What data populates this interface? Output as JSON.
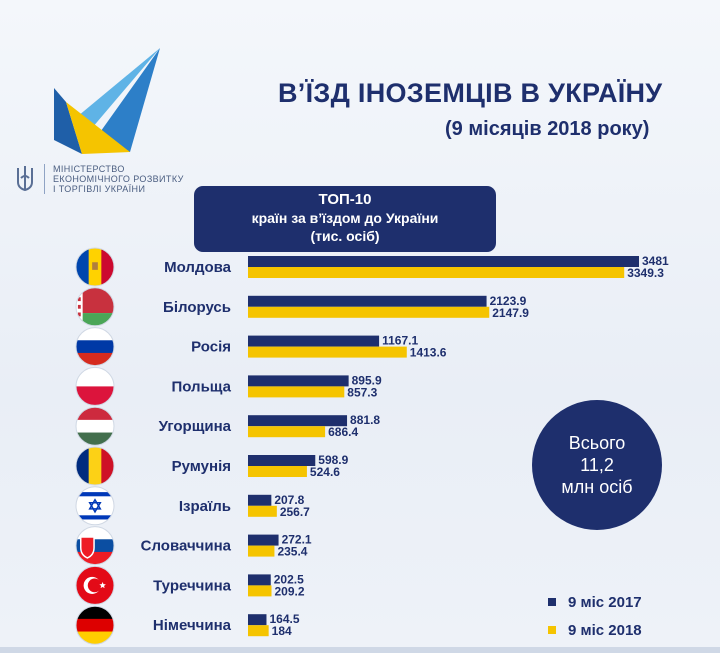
{
  "header": {
    "title": "В’ЇЗД ІНОЗЕМЦІВ В УКРАЇНУ",
    "subtitle": "(9 місяців 2018 року)",
    "ministry_lines": [
      "МІНІСТЕРСТВО",
      "ЕКОНОМІЧНОГО РОЗВИТКУ",
      "І ТОРГІВЛІ УКРАЇНИ"
    ]
  },
  "top_box": {
    "line1": "ТОП-10",
    "line2": "країн за в’їздом до України",
    "line3": "(тис. осіб)"
  },
  "total": {
    "line1": "Всього",
    "line2": "11,2",
    "line3": "млн осіб"
  },
  "colors": {
    "series_2017": "#1e2f6d",
    "series_2018": "#f5c400",
    "title": "#1e2f6d"
  },
  "flags": [
    "moldova-flag-icon",
    "belarus-flag-icon",
    "russia-flag-icon",
    "poland-flag-icon",
    "hungary-flag-icon",
    "romania-flag-icon",
    "israel-flag-icon",
    "slovakia-flag-icon",
    "turkey-flag-icon",
    "germany-flag-icon"
  ],
  "chart_data": {
    "type": "bar",
    "orientation": "horizontal",
    "categories": [
      "Молдова",
      "Білорусь",
      "Росія",
      "Польща",
      "Угорщина",
      "Румунія",
      "Ізраїль",
      "Словаччина",
      "Туреччина",
      "Німеччина"
    ],
    "series": [
      {
        "name": "9 міс 2017",
        "values": [
          3481,
          2123.9,
          1167.1,
          895.9,
          881.8,
          598.9,
          207.8,
          272.1,
          202.5,
          164.5
        ],
        "labels": [
          "3481",
          "2123.9",
          "1167.1",
          "895.9",
          "881.8",
          "598.9",
          "207.8",
          "272.1",
          "202.5",
          "164.5"
        ]
      },
      {
        "name": "9 міс 2018",
        "values": [
          3349.3,
          2147.9,
          1413.6,
          857.3,
          686.4,
          524.6,
          256.7,
          235.4,
          209.2,
          184
        ],
        "labels": [
          "3349.3",
          "2147.9",
          "1413.6",
          "857.3",
          "686.4",
          "524.6",
          "256.7",
          "235.4",
          "209.2",
          "184"
        ]
      }
    ],
    "legend_position": "bottom-right",
    "grid": false
  }
}
